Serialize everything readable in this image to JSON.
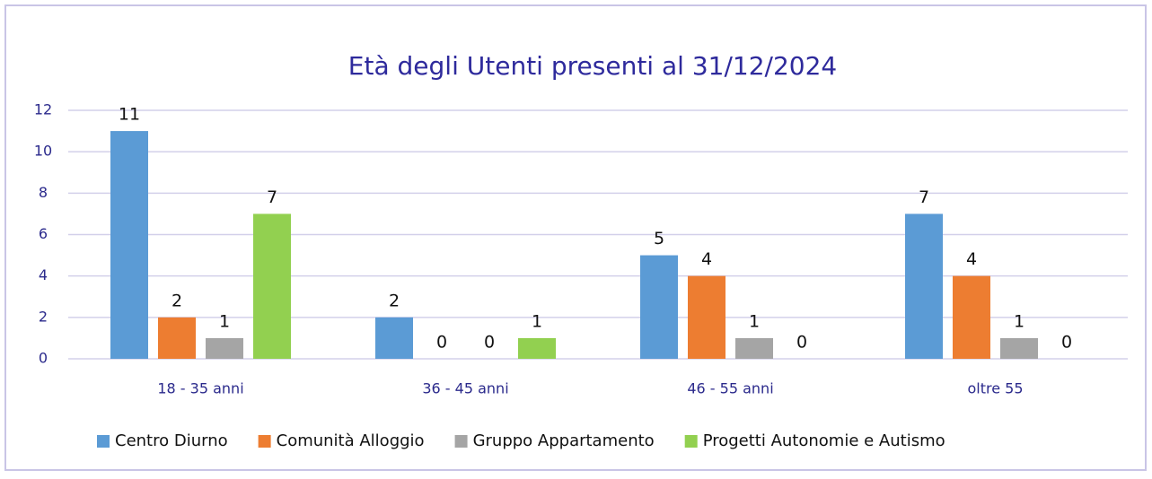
{
  "chart_data": {
    "type": "bar",
    "title": "Età degli Utenti presenti al 31/12/2024",
    "categories": [
      "18 - 35 anni",
      "36 - 45 anni",
      "46 - 55 anni",
      "oltre 55"
    ],
    "series": [
      {
        "name": "Centro Diurno",
        "color": "#5b9bd5",
        "values": [
          11,
          2,
          5,
          7
        ]
      },
      {
        "name": "Comunità Alloggio",
        "color": "#ed7d31",
        "values": [
          2,
          0,
          4,
          4
        ]
      },
      {
        "name": "Gruppo Appartamento",
        "color": "#a5a5a5",
        "values": [
          1,
          0,
          1,
          1
        ]
      },
      {
        "name": "Progetti Autonomie e Autismo",
        "color": "#92d050",
        "values": [
          7,
          1,
          0,
          0
        ]
      }
    ],
    "ylim": [
      0,
      12
    ],
    "yticks": [
      0,
      2,
      4,
      6,
      8,
      10,
      12
    ],
    "grid": true,
    "legend": "bottom"
  }
}
